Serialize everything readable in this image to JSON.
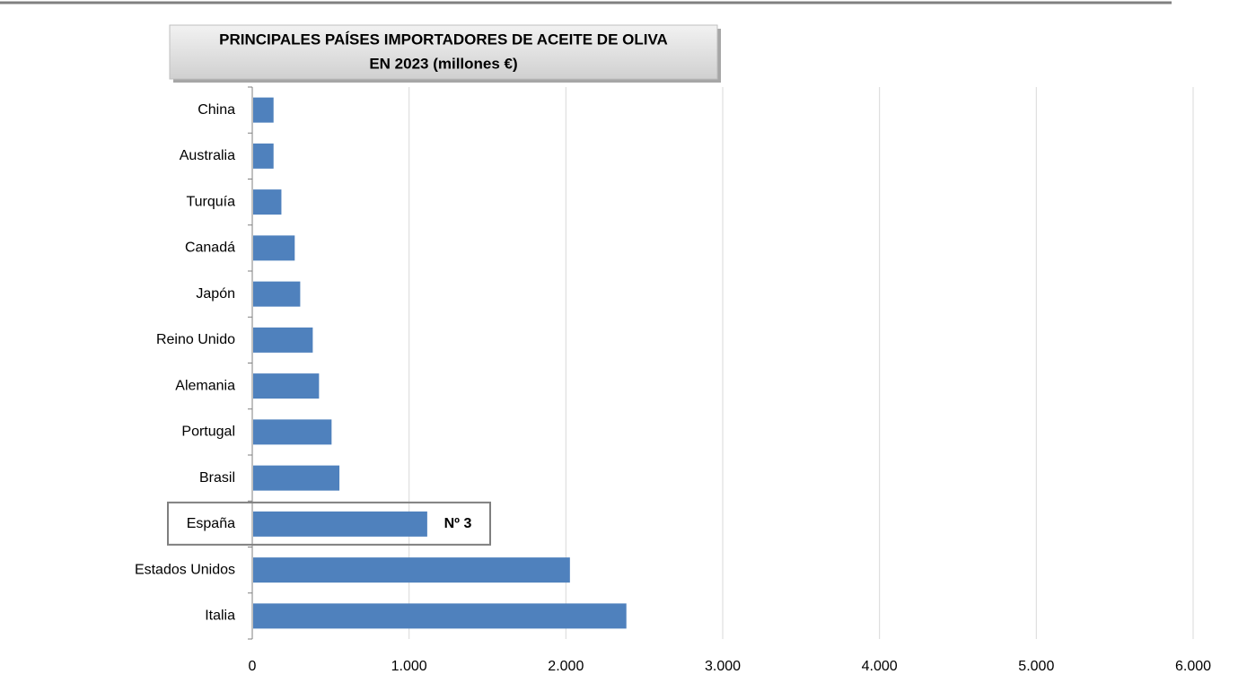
{
  "chart_data": {
    "type": "barh",
    "title": [
      "PRINCIPALES PAÍSES IMPORTADORES DE ACEITE DE OLIVA",
      "EN 2023 (millones €)"
    ],
    "categories": [
      "China",
      "Australia",
      "Turquía",
      "Canadá",
      "Japón",
      "Reino Unido",
      "Alemania",
      "Portugal",
      "Brasil",
      "España",
      "Estados Unidos",
      "Italia"
    ],
    "values": [
      130,
      130,
      180,
      265,
      300,
      380,
      420,
      500,
      550,
      1110,
      2020,
      2380
    ],
    "color": "#4f81bd",
    "xlim": [
      0,
      6000
    ],
    "xticks": [
      0,
      {
        "value": 1000,
        "label": "1.000"
      },
      {
        "value": 2000,
        "label": "2.000"
      },
      {
        "value": 3000,
        "label": "3.000"
      },
      {
        "value": 4000,
        "label": "4.000"
      },
      {
        "value": 5000,
        "label": "5.000"
      },
      {
        "value": 6000,
        "label": "6.000"
      }
    ],
    "grid": true,
    "annotation": "Nº 3"
  }
}
